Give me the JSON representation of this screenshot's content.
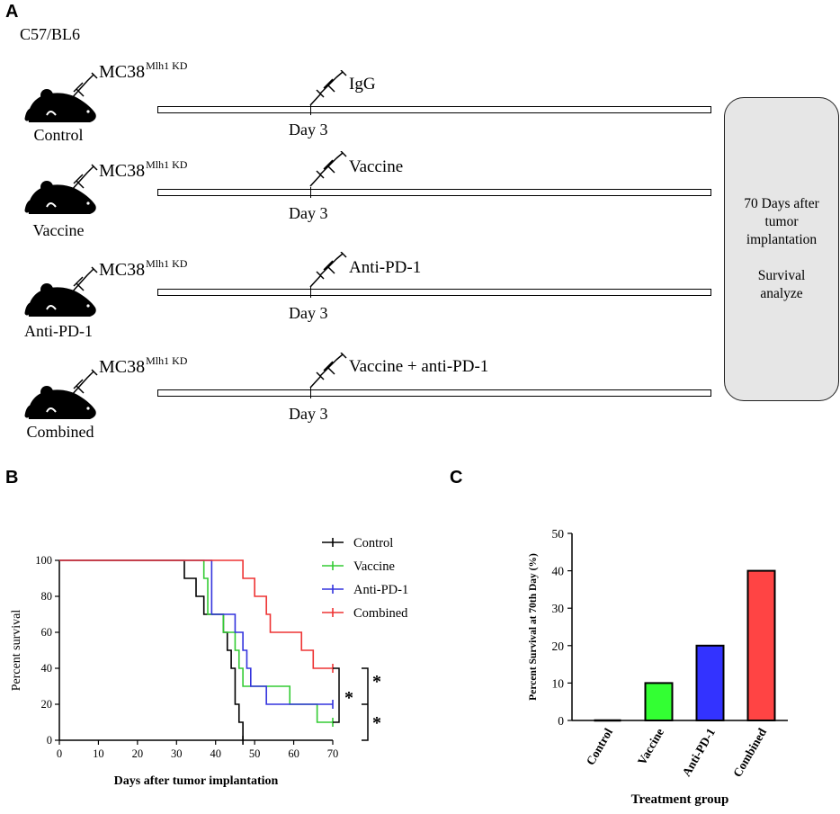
{
  "panels": {
    "a": "A",
    "b": "B",
    "c": "C"
  },
  "panel_a": {
    "strain": "C57/BL6",
    "cell_line": "MC38",
    "cell_line_sup": "Mlh1 KD",
    "day_label": "Day 3",
    "groups": [
      {
        "label": "Control",
        "treatment": "IgG"
      },
      {
        "label": "Vaccine",
        "treatment": "Vaccine"
      },
      {
        "label": "Anti-PD-1",
        "treatment": "Anti-PD-1"
      },
      {
        "label": "Combined",
        "treatment": "Vaccine + anti-PD-1"
      }
    ],
    "summary": {
      "line1": "70 Days after",
      "line2": "tumor",
      "line3": "implantation",
      "line4": "Survival",
      "line5": "analyze"
    }
  },
  "chart_data": [
    {
      "type": "line",
      "subtype": "kaplan-meier",
      "xlabel": "Days after tumor implantation",
      "ylabel": "Percent survival",
      "xlim": [
        0,
        70
      ],
      "ylim": [
        0,
        100
      ],
      "xticks": [
        0,
        10,
        20,
        30,
        40,
        50,
        60,
        70
      ],
      "yticks": [
        0,
        20,
        40,
        60,
        80,
        100
      ],
      "legend_position": "top-right",
      "significance": "*",
      "series": [
        {
          "name": "Control",
          "color": "#000000",
          "x": [
            0,
            32,
            35,
            37,
            42,
            43,
            44,
            45,
            46,
            47
          ],
          "y": [
            100,
            90,
            80,
            70,
            60,
            50,
            40,
            20,
            10,
            0
          ]
        },
        {
          "name": "Vaccine",
          "color": "#33cc33",
          "x": [
            0,
            37,
            38,
            42,
            45,
            46,
            47,
            59,
            66,
            70
          ],
          "y": [
            100,
            90,
            70,
            60,
            50,
            40,
            30,
            20,
            10,
            10
          ]
        },
        {
          "name": "Anti-PD-1",
          "color": "#3333dd",
          "x": [
            0,
            39,
            45,
            47,
            48,
            49,
            53,
            70
          ],
          "y": [
            100,
            70,
            60,
            50,
            40,
            30,
            20,
            20
          ]
        },
        {
          "name": "Combined",
          "color": "#ee3333",
          "x": [
            0,
            47,
            50,
            53,
            54,
            56,
            62,
            65,
            66,
            70
          ],
          "y": [
            100,
            90,
            80,
            70,
            60,
            60,
            50,
            40,
            40,
            40
          ]
        }
      ]
    },
    {
      "type": "bar",
      "xlabel": "Treatment group",
      "ylabel": "Percent Survival at 70th Day (%)",
      "ylim": [
        0,
        50
      ],
      "yticks": [
        0,
        10,
        20,
        30,
        40,
        50
      ],
      "categories": [
        "Control",
        "Vaccine",
        "Anti-PD-1",
        "Combined"
      ],
      "values": [
        0,
        10,
        20,
        40
      ],
      "colors": [
        "#000000",
        "#33ff33",
        "#3333ff",
        "#ff4444"
      ]
    }
  ]
}
